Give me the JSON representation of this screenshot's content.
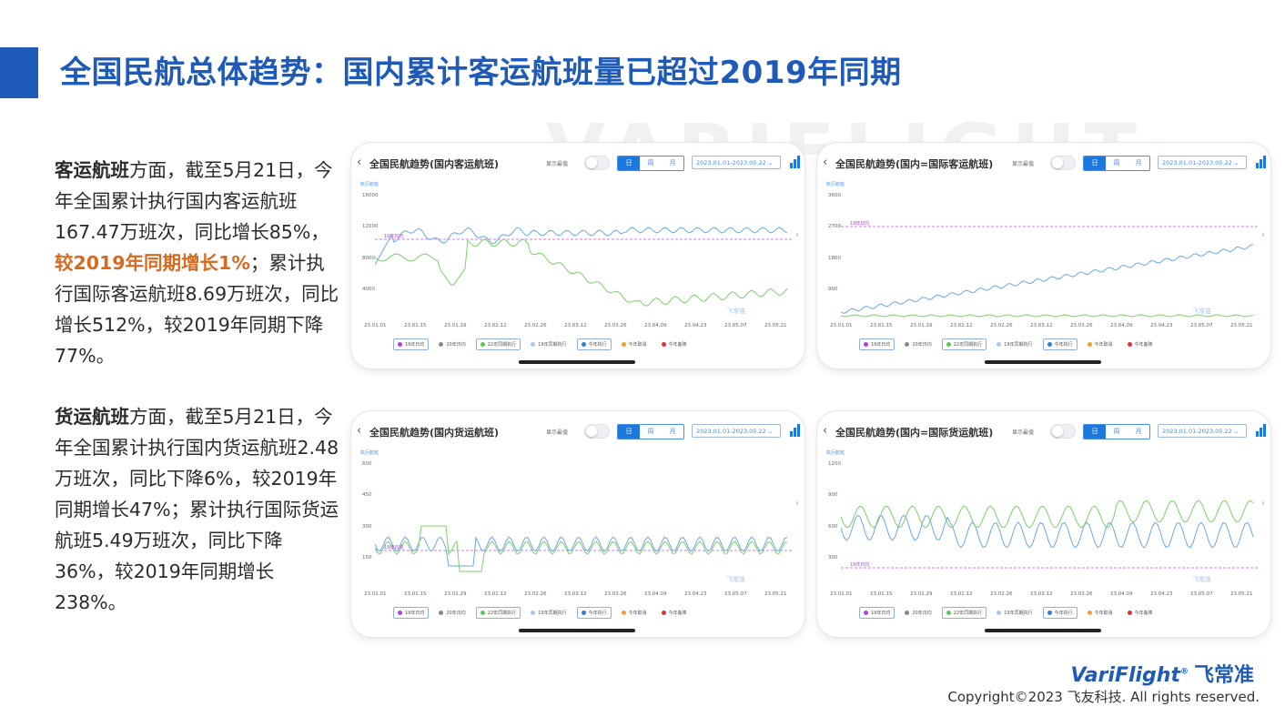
{
  "title": "全国民航总体趋势：国内累计客运航班量已超过2019年同期",
  "watermark_text": "VARIFLIGHT",
  "paragraph_1": {
    "lead": "客运航班",
    "part1": "方面，截至5月21日，今年全国累计执行国内客运航班167.47万班次，同比增长85%，",
    "highlight": "较2019年同期增长1%",
    "part2": "；累计执行国际客运航班8.69万班次，同比增长512%，较2019年同期下降77%。"
  },
  "paragraph_2": {
    "lead": "货运航班",
    "part1": "方面，截至5月21日，今年全国累计执行国内货运航班2.48万班次，同比下降6%，较2019年同期增长47%；累计执行国际货运航班5.49万班次，同比下降36%，较2019年同期增长238%。"
  },
  "charts_common": {
    "toggle_label": "显示最值",
    "segments": [
      "日",
      "周",
      "月"
    ],
    "active_segment": "日",
    "date_range": "2023.01.01-2023.05.22 ⌄",
    "unit_label": "执行航班",
    "logo_watermark": "飞常准",
    "x_ticks": [
      "23.01.01",
      "23.01.15",
      "23.01.29",
      "23.02.12",
      "23.02.26",
      "23.03.12",
      "23.03.26",
      "23.04.09",
      "23.04.23",
      "23.05.07",
      "23.05.21"
    ],
    "legend": [
      {
        "label": "19年日均",
        "color": "#b040e0",
        "boxed": true
      },
      {
        "label": "20年日均",
        "color": "#888888",
        "boxed": false
      },
      {
        "label": "22年同期执行",
        "color": "#5cc55a",
        "boxed": true
      },
      {
        "label": "19年同期执行",
        "color": "#aac7f0",
        "boxed": false
      },
      {
        "label": "今年执行",
        "color": "#2f7fd8",
        "boxed": true
      },
      {
        "label": "今年取消",
        "color": "#f0a030",
        "boxed": false
      },
      {
        "label": "今年备降",
        "color": "#e03030",
        "boxed": false
      }
    ],
    "colors": {
      "this_year": "#6aa8e8",
      "last_year": "#7ccf6a",
      "ref_line": "#c050e0",
      "primary": "#1e5bb8",
      "highlight": "#d86a1e"
    }
  },
  "charts": [
    {
      "title": "全国民航趋势(国内客运航班)",
      "y_ticks": [
        "16000",
        "12000",
        "8000",
        "4000"
      ],
      "ref_label": "19年日均"
    },
    {
      "title": "全国民航趋势(国内=国际客运航班)",
      "y_ticks": [
        "3600",
        "2700",
        "1800",
        "900"
      ],
      "ref_label": "19年日均"
    },
    {
      "title": "全国民航趋势(国内货运航班)",
      "y_ticks": [
        "600",
        "450",
        "300",
        "150"
      ],
      "ref_label": "19年日均"
    },
    {
      "title": "全国民航趋势(国内=国际货运航班)",
      "y_ticks": [
        "1200",
        "900",
        "600",
        "300"
      ],
      "ref_label": "19年日均"
    }
  ],
  "brand": {
    "name": "VariFlight",
    "mark": "®",
    "cn": "飞常准"
  },
  "copyright": "Copyright©2023 飞友科技. All rights reserved."
}
